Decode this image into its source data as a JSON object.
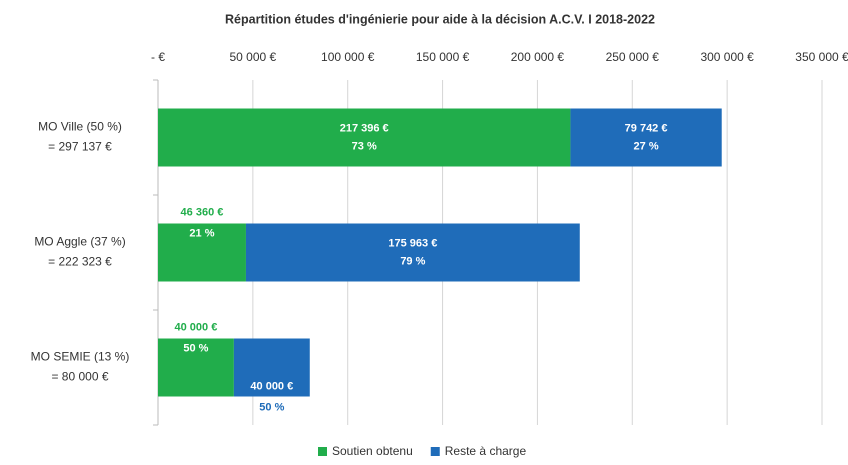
{
  "chart_data": {
    "type": "stacked-barh",
    "title": "Répartition études d'ingénierie pour aide à la décision A.C.V. I 2018-2022",
    "categories": [
      [
        "MO Ville (50 %)",
        "= 297 137 €"
      ],
      [
        "MO Aggle (37 %)",
        "= 222 323 €"
      ],
      [
        "MO SEMIE (13 %)",
        "= 80 000 €"
      ]
    ],
    "series": [
      {
        "name": "Soutien obtenu",
        "color": "#21ad4b",
        "values": [
          217396,
          46360,
          40000
        ],
        "value_labels": [
          "217 396 €",
          "46 360 €",
          "40 000 €"
        ],
        "share_labels": [
          "73 %",
          "21 %",
          "50 %"
        ]
      },
      {
        "name": "Reste à charge",
        "color": "#1f6cb9",
        "values": [
          79742,
          175963,
          40000
        ],
        "value_labels": [
          "79 742 €",
          "175 963 €",
          "40 000 €"
        ],
        "share_labels": [
          "27 %",
          "79 %",
          "50 %"
        ]
      }
    ],
    "xlim": [
      0,
      350000
    ],
    "xticks": [
      {
        "value": 0,
        "label": "- €"
      },
      {
        "value": 50000,
        "label": "50 000 €"
      },
      {
        "value": 100000,
        "label": "100 000 €"
      },
      {
        "value": 150000,
        "label": "150 000 €"
      },
      {
        "value": 200000,
        "label": "200 000 €"
      },
      {
        "value": 250000,
        "label": "250 000 €"
      },
      {
        "value": 300000,
        "label": "300 000 €"
      },
      {
        "value": 350000,
        "label": "350 000 €"
      }
    ],
    "grid": true,
    "legend": "bottom"
  }
}
